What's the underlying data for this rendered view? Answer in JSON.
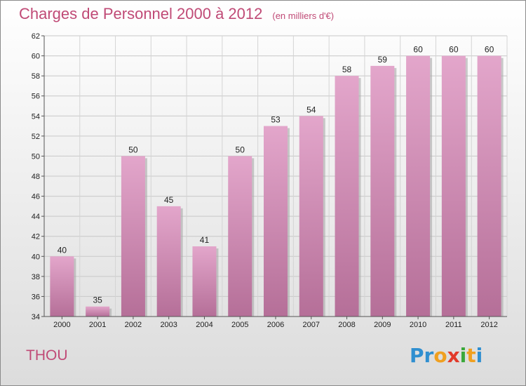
{
  "header": {
    "title": "Charges de Personnel 2000 à 2012",
    "unit": "(en milliers d'€)"
  },
  "footer": {
    "commune": "THOU",
    "logo_letters": [
      {
        "char": "P",
        "color": "#2f8fd0"
      },
      {
        "char": "r",
        "color": "#2f8fd0"
      },
      {
        "char": "o",
        "color": "#f0a020"
      },
      {
        "char": "x",
        "color": "#e23a2a"
      },
      {
        "char": "i",
        "color": "#3aa83a"
      },
      {
        "char": "t",
        "color": "#f0a020"
      },
      {
        "char": "i",
        "color": "#2f8fd0"
      }
    ]
  },
  "chart_data": {
    "type": "bar",
    "categories": [
      "2000",
      "2001",
      "2002",
      "2003",
      "2004",
      "2005",
      "2006",
      "2007",
      "2008",
      "2009",
      "2010",
      "2011",
      "2012"
    ],
    "values": [
      40,
      35,
      50,
      45,
      41,
      50,
      53,
      54,
      58,
      59,
      60,
      60,
      60
    ],
    "ylim": [
      34,
      62
    ],
    "yticks": [
      34,
      36,
      38,
      40,
      42,
      44,
      46,
      48,
      50,
      52,
      54,
      56,
      58,
      60,
      62
    ],
    "grid": true,
    "bar_color_top": "#e3a6cb",
    "bar_color_bottom": "#b56f98",
    "title": "Charges de Personnel 2000 à 2012",
    "xlabel": "",
    "ylabel": ""
  }
}
